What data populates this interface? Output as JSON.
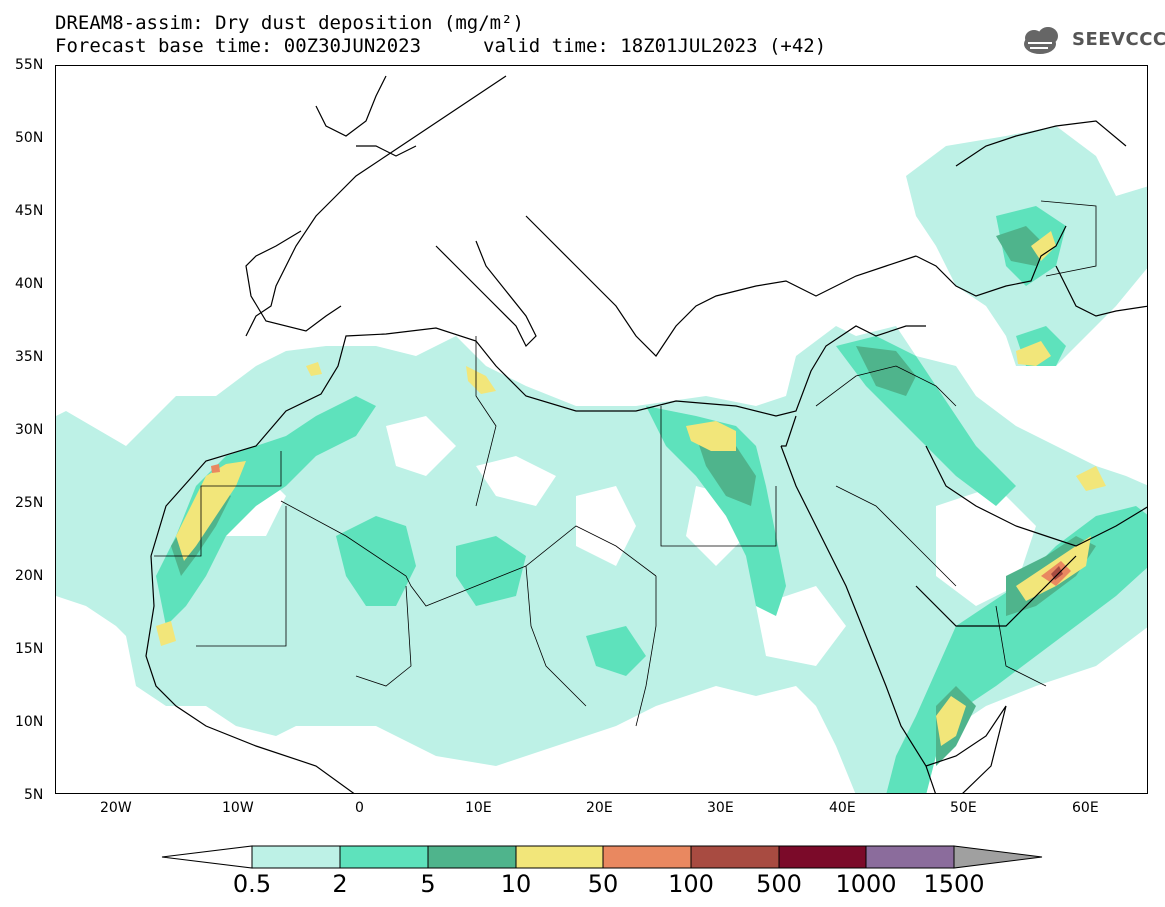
{
  "header": {
    "title_line1": "DREAM8-assim: Dry dust deposition (mg/m²)",
    "title_line2": "Forecast base time: 00Z30JUN2023",
    "title_line3": "valid time: 18Z01JUL2023 (+42)"
  },
  "logo": {
    "text": "SEEVCCC",
    "icon": "cloud-icon"
  },
  "map": {
    "region": "North Africa, Europe and Middle East",
    "lat_labels": [
      "55N",
      "50N",
      "45N",
      "40N",
      "35N",
      "30N",
      "25N",
      "20N",
      "15N",
      "10N",
      "5N"
    ],
    "lon_labels": [
      "20W",
      "10W",
      "0",
      "10E",
      "20E",
      "30E",
      "40E",
      "50E",
      "60E"
    ],
    "lat_values": [
      55,
      50,
      45,
      40,
      35,
      30,
      25,
      20,
      15,
      10,
      5
    ],
    "lon_values": [
      -20,
      -10,
      0,
      10,
      20,
      30,
      40,
      50,
      60
    ],
    "lon_range": [
      -25,
      65
    ],
    "lat_range": [
      5,
      55
    ]
  },
  "colorbar": {
    "labels": [
      "0.5",
      "2",
      "5",
      "10",
      "50",
      "100",
      "500",
      "1000",
      "1500"
    ],
    "colors": [
      "#ffffff",
      "#bdf1e6",
      "#5ee2bc",
      "#4fb48c",
      "#f2e67a",
      "#e98860",
      "#a84b41",
      "#7b0a29",
      "#8b6c9c",
      "#a0a0a0"
    ]
  },
  "legend_colors": {
    "level1": "#bdf1e6",
    "level2": "#5ee2bc",
    "level3": "#4fb48c",
    "level4": "#f2e67a",
    "level5": "#e98860",
    "level6": "#a84b41"
  }
}
